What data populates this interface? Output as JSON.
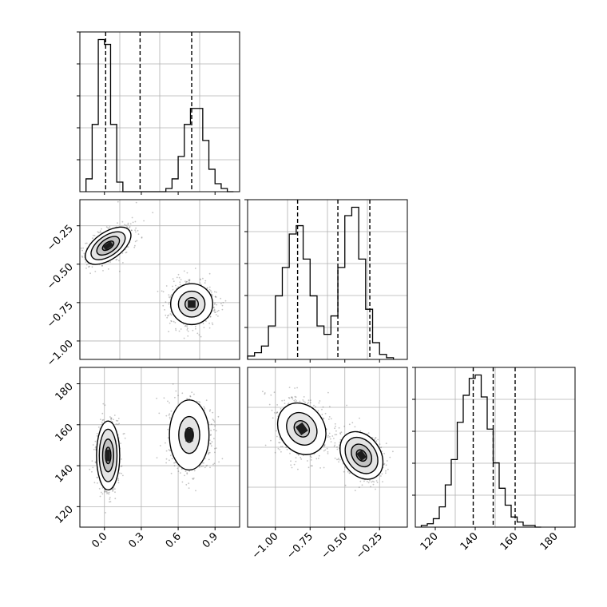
{
  "chart_data": [
    {
      "type": "histogram",
      "panel": "row1-col1",
      "xlim": [
        -0.2,
        1.1
      ],
      "bins": {
        "start": -0.15,
        "width": 0.05,
        "counts": [
          0.08,
          0.42,
          0.95,
          0.92,
          0.42,
          0.06,
          0.0,
          0.0,
          0.0,
          0.0,
          0.0,
          0.0,
          0.0,
          0.02,
          0.08,
          0.22,
          0.42,
          0.52,
          0.52,
          0.32,
          0.14,
          0.05,
          0.02,
          0.0
        ]
      },
      "quantile_lines": [
        0.01,
        0.29,
        0.71
      ],
      "grid": true
    },
    {
      "type": "histogram",
      "panel": "row2-col2",
      "xlim": [
        -1.2,
        -0.05
      ],
      "bins": {
        "start": -1.2,
        "width": 0.05,
        "counts": [
          0.02,
          0.04,
          0.08,
          0.2,
          0.38,
          0.55,
          0.75,
          0.8,
          0.6,
          0.38,
          0.2,
          0.15,
          0.26,
          0.55,
          0.86,
          0.91,
          0.6,
          0.3,
          0.1,
          0.03,
          0.01
        ]
      },
      "quantile_lines": [
        -0.84,
        -0.55,
        -0.32
      ],
      "grid": true
    },
    {
      "type": "histogram",
      "panel": "row3-col3",
      "xlim": [
        110,
        190
      ],
      "bins": {
        "start": 113,
        "width": 3,
        "counts": [
          0.01,
          0.02,
          0.05,
          0.12,
          0.25,
          0.4,
          0.62,
          0.78,
          0.88,
          0.9,
          0.77,
          0.58,
          0.38,
          0.23,
          0.13,
          0.06,
          0.03,
          0.01,
          0.01,
          0.0
        ]
      },
      "quantile_lines": [
        139,
        149,
        160
      ],
      "grid": true
    },
    {
      "type": "contour",
      "panel": "row2-col1",
      "xlim": [
        -0.2,
        1.1
      ],
      "ylim": [
        -1.12,
        -0.08
      ],
      "y_ticks": [
        "−0.25",
        "−0.50",
        "−0.75",
        "−1.00"
      ],
      "y_tick_values": [
        -0.25,
        -0.5,
        -0.75,
        -1.0
      ],
      "grid": true,
      "modes": [
        {
          "cx": 0.03,
          "cy": -0.38,
          "sx": 0.055,
          "sy": 0.085,
          "angle": 55,
          "levels": [
            0.5,
            1.0,
            1.5,
            2.0
          ]
        },
        {
          "cx": 0.71,
          "cy": -0.76,
          "sx": 0.09,
          "sy": 0.07,
          "angle": 0,
          "levels": [
            0.6,
            1.2,
            1.9
          ]
        }
      ]
    },
    {
      "type": "contour",
      "panel": "row3-col1",
      "xlim": [
        -0.2,
        1.1
      ],
      "ylim": [
        110,
        188
      ],
      "y_ticks": [
        "180",
        "160",
        "140",
        "120"
      ],
      "y_tick_values": [
        180,
        160,
        140,
        120
      ],
      "x_ticks": [
        "0.0",
        "0.3",
        "0.6",
        "0.9"
      ],
      "x_tick_values": [
        0.0,
        0.3,
        0.6,
        0.9
      ],
      "grid": true,
      "modes": [
        {
          "cx": 0.03,
          "cy": 145,
          "sx": 0.045,
          "sy": 8,
          "angle": 0,
          "levels": [
            0.5,
            1.0,
            1.6,
            2.1
          ]
        },
        {
          "cx": 0.69,
          "cy": 155,
          "sx": 0.085,
          "sy": 9,
          "angle": 0,
          "levels": [
            0.4,
            1.0,
            1.9
          ]
        }
      ]
    },
    {
      "type": "contour",
      "panel": "row3-col2",
      "xlim": [
        -1.2,
        -0.05
      ],
      "ylim": [
        110,
        188
      ],
      "x_ticks": [
        "−1.00",
        "−0.75",
        "−0.50",
        "−0.25"
      ],
      "x_tick_values": [
        -1.0,
        -0.75,
        -0.5,
        -0.25
      ],
      "grid": true,
      "modes": [
        {
          "cx": -0.81,
          "cy": 158,
          "sx": 0.085,
          "sy": 7,
          "angle": -35,
          "levels": [
            0.6,
            1.2,
            1.9
          ]
        },
        {
          "cx": -0.38,
          "cy": 145,
          "sx": 0.065,
          "sy": 6,
          "angle": -35,
          "levels": [
            0.5,
            1.0,
            1.6,
            2.1
          ]
        }
      ]
    },
    {
      "type": "histogram-axis",
      "panel": "row3-col3-xaxis",
      "x_ticks": [
        "120",
        "140",
        "160",
        "180"
      ],
      "x_tick_values": [
        120,
        140,
        160,
        180
      ]
    }
  ]
}
